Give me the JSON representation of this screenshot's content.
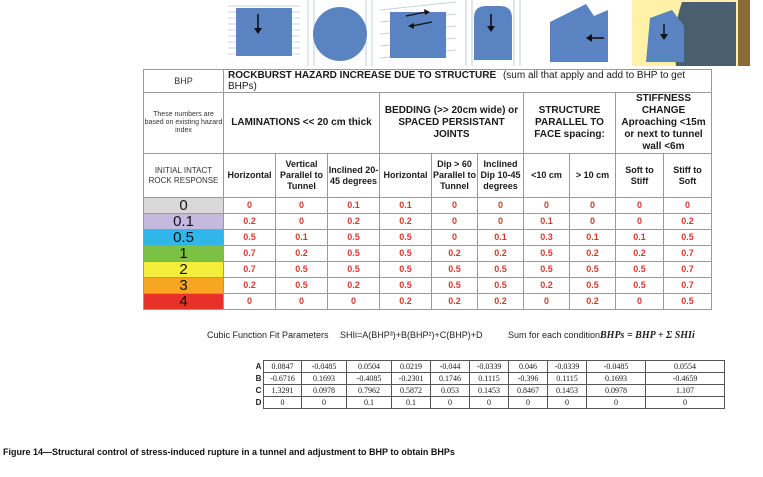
{
  "icons": [
    "laminations-horizontal-icon",
    "circular-tunnel-icon",
    "bedding-icon",
    "stiff-arrow-icon",
    "face-structure-icon",
    "stiffness-change-icon"
  ],
  "table": {
    "corner_bhp": "BHP",
    "corner_note": "These numbers are based on existing hazard index",
    "corner_initial": "INITIAL INTACT ROCK RESPONSE",
    "title": "ROCKBURST HAZARD INCREASE DUE TO STRUCTURE",
    "title_note": "(sum all that apply and add to BHP to get BHPs)",
    "groups": [
      {
        "label": "LAMINATIONS << 20 cm thick"
      },
      {
        "label": "BEDDING (>> 20cm wide) or SPACED PERSISTANT JOINTS"
      },
      {
        "label": "STRUCTURE PARALLEL TO FACE spacing:"
      },
      {
        "label": "STIFFNESS CHANGE Aproaching <15m or next to tunnel wall <6m"
      }
    ],
    "columns": [
      "Horizontal",
      "Vertical Parallel to Tunnel",
      "Inclined 20-45 degrees",
      "Horizontal",
      "Dip > 60 Parallel to Tunnel",
      "Inclined Dip 10-45 degrees",
      "<10 cm",
      "> 10 cm",
      "Soft to Stiff",
      "Stiff to Soft"
    ],
    "rows": [
      {
        "bhp": "0",
        "color": "#d9d9d9",
        "values": [
          "0",
          "0",
          "0.1",
          "0.1",
          "0",
          "0",
          "0",
          "0",
          "0",
          "0"
        ]
      },
      {
        "bhp": "0.1",
        "color": "#c7b8de",
        "values": [
          "0.2",
          "0",
          "0.2",
          "0.2",
          "0",
          "0",
          "0.1",
          "0",
          "0",
          "0.2"
        ]
      },
      {
        "bhp": "0.5",
        "color": "#2fb7ea",
        "values": [
          "0.5",
          "0.1",
          "0.5",
          "0.5",
          "0",
          "0.1",
          "0.3",
          "0.1",
          "0.1",
          "0.5"
        ]
      },
      {
        "bhp": "1",
        "color": "#7bc143",
        "values": [
          "0.7",
          "0.2",
          "0.5",
          "0.5",
          "0.2",
          "0.2",
          "0.5",
          "0.2",
          "0.2",
          "0.7"
        ]
      },
      {
        "bhp": "2",
        "color": "#f2ee3a",
        "values": [
          "0.7",
          "0.5",
          "0.5",
          "0.5",
          "0.5",
          "0.5",
          "0.5",
          "0.5",
          "0.5",
          "0.7"
        ]
      },
      {
        "bhp": "3",
        "color": "#f6a623",
        "values": [
          "0.2",
          "0.5",
          "0.2",
          "0.5",
          "0.5",
          "0.5",
          "0.2",
          "0.5",
          "0.5",
          "0.7"
        ]
      },
      {
        "bhp": "4",
        "color": "#e8312a",
        "values": [
          "0",
          "0",
          "0",
          "0.2",
          "0.2",
          "0.2",
          "0",
          "0.2",
          "0",
          "0.5"
        ]
      }
    ]
  },
  "cubic": {
    "label": "Cubic Function Fit Parameters",
    "formula": "SHIi=A(BHP³)+B(BHP²)+C(BHP)+D",
    "sum_label": "Sum for each condition:",
    "sum_formula": "BHPs = BHP + Σ SHIi"
  },
  "coef": [
    {
      "label": "A",
      "values": [
        "0.0847",
        "-0.0485",
        "0.0504",
        "0.0219",
        "-0.044",
        "-0.0339",
        "0.046",
        "-0.0339",
        "-0.0485",
        "0.0554"
      ]
    },
    {
      "label": "B",
      "values": [
        "-0.6716",
        "0.1693",
        "-0.4085",
        "-0.2301",
        "0.1746",
        "0.1115",
        "-0.396",
        "0.1115",
        "0.1693",
        "-0.4659"
      ]
    },
    {
      "label": "C",
      "values": [
        "1.3291",
        "0.0978",
        "0.7962",
        "0.5872",
        "0.053",
        "0.1453",
        "0.8467",
        "0.1453",
        "0.0978",
        "1.107"
      ]
    },
    {
      "label": "D",
      "values": [
        "0",
        "0",
        "0.1",
        "0.1",
        "0",
        "0",
        "0",
        "0",
        "0",
        "0"
      ]
    }
  ],
  "caption": "Figure 14—Structural control of stress-induced rupture in a tunnel and adjustment to BHP to obtain BHPs"
}
